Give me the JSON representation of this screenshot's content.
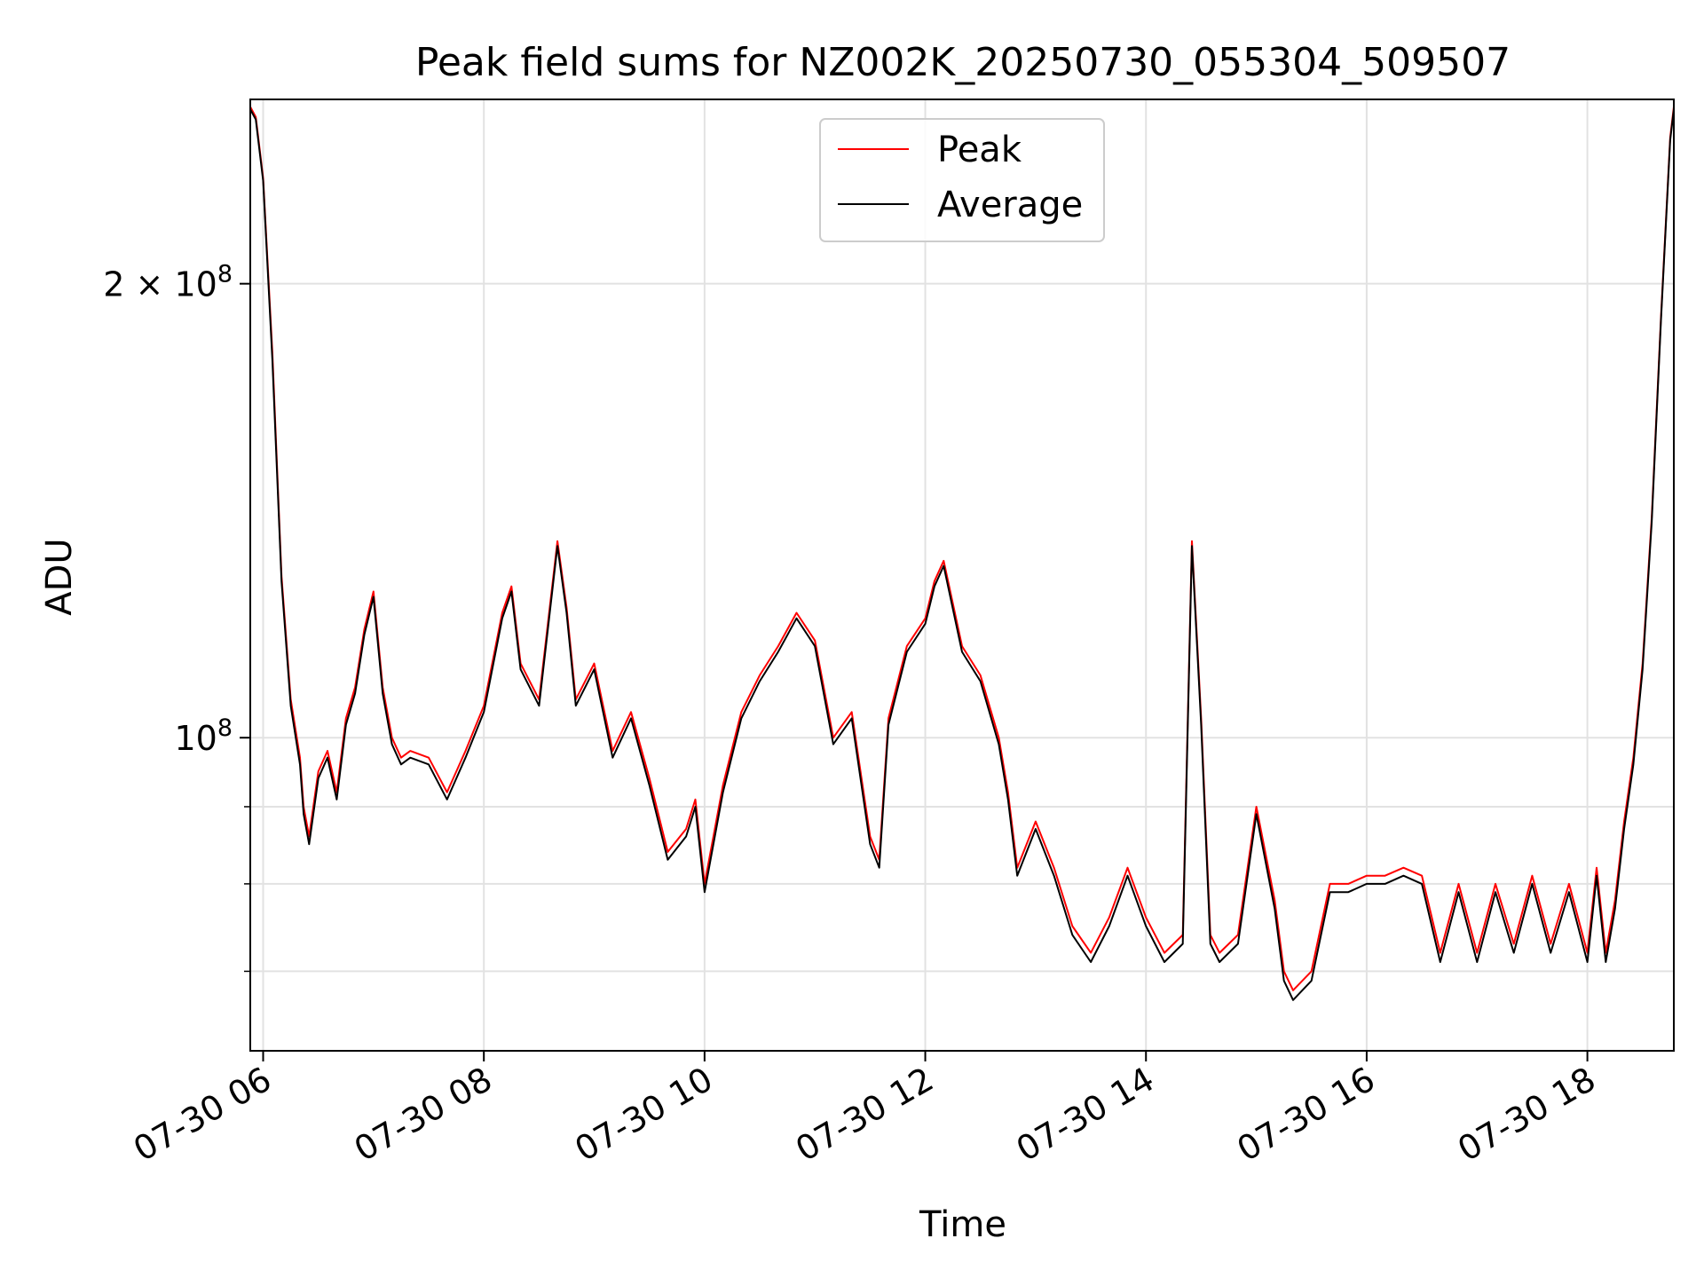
{
  "chart_data": {
    "type": "line",
    "title": "Peak field sums for NZ002K_20250730_055304_509507",
    "xlabel": "Time",
    "ylabel": "ADU",
    "yscale": "log",
    "ylim": [
      62000000,
      265000000
    ],
    "xlim": [
      "2025-07-30 05:53",
      "2025-07-30 18:47"
    ],
    "x_ticks": [
      {
        "value": "2025-07-30 06:00",
        "label": "07-30 06"
      },
      {
        "value": "2025-07-30 08:00",
        "label": "07-30 08"
      },
      {
        "value": "2025-07-30 10:00",
        "label": "07-30 10"
      },
      {
        "value": "2025-07-30 12:00",
        "label": "07-30 12"
      },
      {
        "value": "2025-07-30 14:00",
        "label": "07-30 14"
      },
      {
        "value": "2025-07-30 16:00",
        "label": "07-30 16"
      },
      {
        "value": "2025-07-30 18:00",
        "label": "07-30 18"
      }
    ],
    "y_major_ticks": [
      {
        "value": 100000000,
        "base": "10",
        "exp": "8",
        "coef": ""
      },
      {
        "value": 200000000,
        "base": "10",
        "exp": "8",
        "coef": "2 × "
      }
    ],
    "y_minor_ticks": [
      70000000,
      80000000,
      90000000
    ],
    "grid": true,
    "legend": {
      "position": "upper center"
    },
    "series": [
      {
        "name": "Peak",
        "color": "#ff0000",
        "x": [
          "2025-07-30 05:53",
          "2025-07-30 05:56",
          "2025-07-30 06:00",
          "2025-07-30 06:05",
          "2025-07-30 06:10",
          "2025-07-30 06:15",
          "2025-07-30 06:20",
          "2025-07-30 06:22",
          "2025-07-30 06:25",
          "2025-07-30 06:30",
          "2025-07-30 06:35",
          "2025-07-30 06:40",
          "2025-07-30 06:45",
          "2025-07-30 06:50",
          "2025-07-30 06:55",
          "2025-07-30 07:00",
          "2025-07-30 07:05",
          "2025-07-30 07:10",
          "2025-07-30 07:15",
          "2025-07-30 07:20",
          "2025-07-30 07:30",
          "2025-07-30 07:40",
          "2025-07-30 07:50",
          "2025-07-30 08:00",
          "2025-07-30 08:10",
          "2025-07-30 08:15",
          "2025-07-30 08:20",
          "2025-07-30 08:30",
          "2025-07-30 08:40",
          "2025-07-30 08:45",
          "2025-07-30 08:50",
          "2025-07-30 09:00",
          "2025-07-30 09:10",
          "2025-07-30 09:20",
          "2025-07-30 09:30",
          "2025-07-30 09:40",
          "2025-07-30 09:50",
          "2025-07-30 09:55",
          "2025-07-30 10:00",
          "2025-07-30 10:10",
          "2025-07-30 10:20",
          "2025-07-30 10:30",
          "2025-07-30 10:40",
          "2025-07-30 10:50",
          "2025-07-30 11:00",
          "2025-07-30 11:10",
          "2025-07-30 11:20",
          "2025-07-30 11:30",
          "2025-07-30 11:35",
          "2025-07-30 11:40",
          "2025-07-30 11:50",
          "2025-07-30 12:00",
          "2025-07-30 12:05",
          "2025-07-30 12:10",
          "2025-07-30 12:20",
          "2025-07-30 12:30",
          "2025-07-30 12:40",
          "2025-07-30 12:45",
          "2025-07-30 12:50",
          "2025-07-30 13:00",
          "2025-07-30 13:10",
          "2025-07-30 13:20",
          "2025-07-30 13:30",
          "2025-07-30 13:40",
          "2025-07-30 13:50",
          "2025-07-30 14:00",
          "2025-07-30 14:10",
          "2025-07-30 14:20",
          "2025-07-30 14:25",
          "2025-07-30 14:30",
          "2025-07-30 14:35",
          "2025-07-30 14:40",
          "2025-07-30 14:50",
          "2025-07-30 15:00",
          "2025-07-30 15:10",
          "2025-07-30 15:15",
          "2025-07-30 15:20",
          "2025-07-30 15:30",
          "2025-07-30 15:40",
          "2025-07-30 15:50",
          "2025-07-30 16:00",
          "2025-07-30 16:10",
          "2025-07-30 16:20",
          "2025-07-30 16:30",
          "2025-07-30 16:40",
          "2025-07-30 16:50",
          "2025-07-30 17:00",
          "2025-07-30 17:10",
          "2025-07-30 17:20",
          "2025-07-30 17:30",
          "2025-07-30 17:40",
          "2025-07-30 17:50",
          "2025-07-30 18:00",
          "2025-07-30 18:05",
          "2025-07-30 18:10",
          "2025-07-30 18:15",
          "2025-07-30 18:20",
          "2025-07-30 18:25",
          "2025-07-30 18:30",
          "2025-07-30 18:35",
          "2025-07-30 18:40",
          "2025-07-30 18:45",
          "2025-07-30 18:47"
        ],
        "values": [
          262000000,
          258000000,
          235000000,
          180000000,
          128000000,
          106000000,
          97000000,
          90000000,
          86000000,
          95000000,
          98000000,
          92000000,
          103000000,
          108000000,
          118000000,
          125000000,
          108000000,
          100000000,
          97000000,
          98000000,
          97000000,
          92000000,
          98000000,
          105000000,
          121000000,
          126000000,
          112000000,
          106000000,
          135000000,
          122000000,
          106000000,
          112000000,
          98000000,
          104000000,
          94000000,
          84000000,
          87000000,
          91000000,
          80000000,
          93000000,
          104000000,
          110000000,
          115000000,
          121000000,
          116000000,
          100000000,
          104000000,
          86000000,
          83000000,
          103000000,
          115000000,
          120000000,
          127000000,
          131000000,
          115000000,
          110000000,
          100000000,
          92000000,
          82000000,
          88000000,
          82000000,
          75000000,
          72000000,
          76000000,
          82000000,
          76000000,
          72000000,
          74000000,
          135000000,
          103000000,
          74000000,
          72000000,
          74000000,
          90000000,
          78000000,
          70000000,
          68000000,
          70000000,
          80000000,
          80000000,
          81000000,
          81000000,
          82000000,
          81000000,
          72000000,
          80000000,
          72000000,
          80000000,
          73000000,
          81000000,
          73000000,
          80000000,
          72000000,
          82000000,
          72000000,
          78000000,
          88000000,
          97000000,
          112000000,
          140000000,
          190000000,
          250000000,
          262000000
        ]
      },
      {
        "name": "Average",
        "color": "#000000",
        "x": [
          "2025-07-30 05:53",
          "2025-07-30 05:56",
          "2025-07-30 06:00",
          "2025-07-30 06:05",
          "2025-07-30 06:10",
          "2025-07-30 06:15",
          "2025-07-30 06:20",
          "2025-07-30 06:22",
          "2025-07-30 06:25",
          "2025-07-30 06:30",
          "2025-07-30 06:35",
          "2025-07-30 06:40",
          "2025-07-30 06:45",
          "2025-07-30 06:50",
          "2025-07-30 06:55",
          "2025-07-30 07:00",
          "2025-07-30 07:05",
          "2025-07-30 07:10",
          "2025-07-30 07:15",
          "2025-07-30 07:20",
          "2025-07-30 07:30",
          "2025-07-30 07:40",
          "2025-07-30 07:50",
          "2025-07-30 08:00",
          "2025-07-30 08:10",
          "2025-07-30 08:15",
          "2025-07-30 08:20",
          "2025-07-30 08:30",
          "2025-07-30 08:40",
          "2025-07-30 08:45",
          "2025-07-30 08:50",
          "2025-07-30 09:00",
          "2025-07-30 09:10",
          "2025-07-30 09:20",
          "2025-07-30 09:30",
          "2025-07-30 09:40",
          "2025-07-30 09:50",
          "2025-07-30 09:55",
          "2025-07-30 10:00",
          "2025-07-30 10:10",
          "2025-07-30 10:20",
          "2025-07-30 10:30",
          "2025-07-30 10:40",
          "2025-07-30 10:50",
          "2025-07-30 11:00",
          "2025-07-30 11:10",
          "2025-07-30 11:20",
          "2025-07-30 11:30",
          "2025-07-30 11:35",
          "2025-07-30 11:40",
          "2025-07-30 11:50",
          "2025-07-30 12:00",
          "2025-07-30 12:05",
          "2025-07-30 12:10",
          "2025-07-30 12:20",
          "2025-07-30 12:30",
          "2025-07-30 12:40",
          "2025-07-30 12:45",
          "2025-07-30 12:50",
          "2025-07-30 13:00",
          "2025-07-30 13:10",
          "2025-07-30 13:20",
          "2025-07-30 13:30",
          "2025-07-30 13:40",
          "2025-07-30 13:50",
          "2025-07-30 14:00",
          "2025-07-30 14:10",
          "2025-07-30 14:20",
          "2025-07-30 14:25",
          "2025-07-30 14:30",
          "2025-07-30 14:35",
          "2025-07-30 14:40",
          "2025-07-30 14:50",
          "2025-07-30 15:00",
          "2025-07-30 15:10",
          "2025-07-30 15:15",
          "2025-07-30 15:20",
          "2025-07-30 15:30",
          "2025-07-30 15:40",
          "2025-07-30 15:50",
          "2025-07-30 16:00",
          "2025-07-30 16:10",
          "2025-07-30 16:20",
          "2025-07-30 16:30",
          "2025-07-30 16:40",
          "2025-07-30 16:50",
          "2025-07-30 17:00",
          "2025-07-30 17:10",
          "2025-07-30 17:20",
          "2025-07-30 17:30",
          "2025-07-30 17:40",
          "2025-07-30 17:50",
          "2025-07-30 18:00",
          "2025-07-30 18:05",
          "2025-07-30 18:10",
          "2025-07-30 18:15",
          "2025-07-30 18:20",
          "2025-07-30 18:25",
          "2025-07-30 18:30",
          "2025-07-30 18:35",
          "2025-07-30 18:40",
          "2025-07-30 18:45",
          "2025-07-30 18:47"
        ],
        "values": [
          261000000,
          257000000,
          234000000,
          178000000,
          127000000,
          105000000,
          96000000,
          89000000,
          85000000,
          94000000,
          97000000,
          91000000,
          102000000,
          107000000,
          117000000,
          124000000,
          107000000,
          99000000,
          96000000,
          97000000,
          96000000,
          91000000,
          97000000,
          104000000,
          120000000,
          125000000,
          111000000,
          105000000,
          134000000,
          121000000,
          105000000,
          111000000,
          97000000,
          103000000,
          93000000,
          83000000,
          86000000,
          90000000,
          79000000,
          92000000,
          103000000,
          109000000,
          114000000,
          120000000,
          115000000,
          99000000,
          103000000,
          85000000,
          82000000,
          102000000,
          114000000,
          119000000,
          126000000,
          130000000,
          114000000,
          109000000,
          99000000,
          91000000,
          81000000,
          87000000,
          81000000,
          74000000,
          71000000,
          75000000,
          81000000,
          75000000,
          71000000,
          73000000,
          134000000,
          102000000,
          73000000,
          71000000,
          73000000,
          89000000,
          77000000,
          69000000,
          67000000,
          69000000,
          79000000,
          79000000,
          80000000,
          80000000,
          81000000,
          80000000,
          71000000,
          79000000,
          71000000,
          79000000,
          72000000,
          80000000,
          72000000,
          79000000,
          71000000,
          81000000,
          71000000,
          77000000,
          87000000,
          96000000,
          111000000,
          139000000,
          189000000,
          249000000,
          261000000
        ]
      }
    ]
  }
}
